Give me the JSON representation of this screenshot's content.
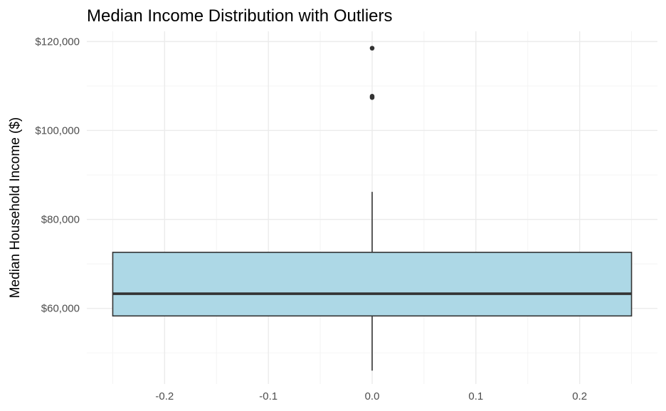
{
  "chart_data": {
    "type": "boxplot",
    "title": "Median Income Distribution with Outliers",
    "xlabel": "",
    "ylabel": "Median Household Income ($)",
    "x_ticks": [
      -0.2,
      -0.1,
      0.0,
      0.1,
      0.2
    ],
    "x_tick_labels": [
      "-0.2",
      "-0.1",
      "0.0",
      "0.1",
      "0.2"
    ],
    "y_ticks": [
      60000,
      80000,
      100000,
      120000
    ],
    "y_tick_labels": [
      "$60,000",
      "$80,000",
      "$100,000",
      "$120,000"
    ],
    "xlim": [
      -0.275,
      0.275
    ],
    "ylim": [
      43000,
      122300
    ],
    "grid": true,
    "legend": "none",
    "box": {
      "x_center": 0.0,
      "x_range": [
        -0.25,
        0.25
      ],
      "whisker_low": 46000,
      "q1": 58300,
      "median": 63300,
      "q3": 72600,
      "whisker_high": 86200
    },
    "outliers": [
      118500,
      107700,
      107400
    ],
    "colors": {
      "box_fill": "#add8e6",
      "box_line": "#333333",
      "grid": "#ebebeb"
    }
  }
}
